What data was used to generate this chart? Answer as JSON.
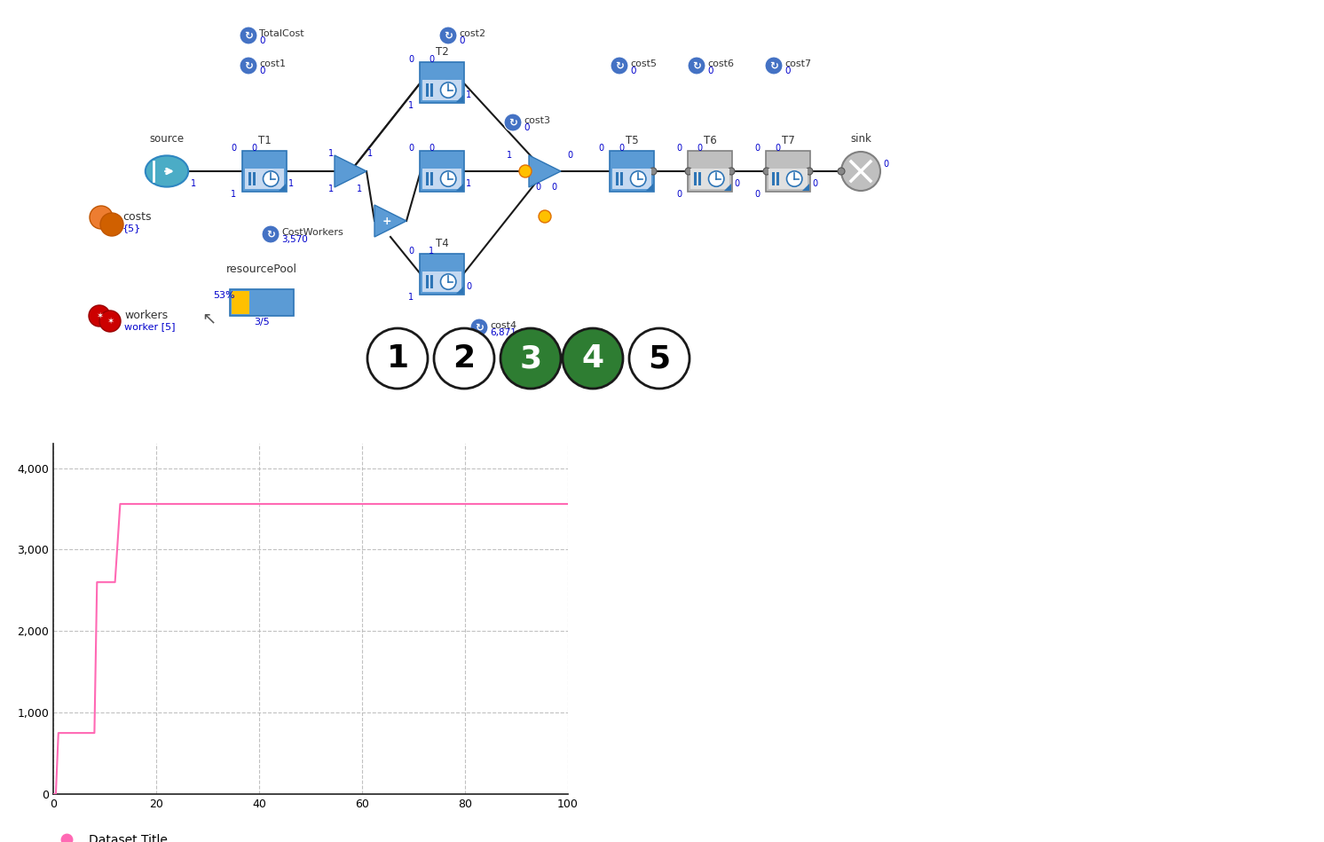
{
  "background_color": "#ffffff",
  "line_color": "#ff69b4",
  "line_data_x": [
    0,
    0.5,
    1,
    2,
    3,
    4,
    5,
    6,
    7,
    8,
    8.5,
    9,
    10,
    11,
    12,
    13,
    14,
    15,
    16,
    17,
    18,
    19,
    20,
    100
  ],
  "line_data_y": [
    0,
    0,
    750,
    750,
    750,
    750,
    750,
    750,
    750,
    750,
    2600,
    2600,
    2600,
    2600,
    2600,
    3560,
    3560,
    3560,
    3560,
    3560,
    3560,
    3560,
    3560,
    3560
  ],
  "xlim": [
    0,
    100
  ],
  "ylim": [
    0,
    4300
  ],
  "yticks": [
    0,
    1000,
    2000,
    3000,
    4000
  ],
  "xticks": [
    0,
    20,
    40,
    60,
    80,
    100
  ],
  "grid_color": "#bbbbbb",
  "legend_label": "Dataset Title",
  "legend_dot_color": "#ff69b4",
  "node_blue": "#5b9bd5",
  "node_blue_dark": "#2e75b6",
  "node_blue_light": "#c5d9f1",
  "node_gray": "#bfbfbf",
  "node_gray_dark": "#808080",
  "node_gray_light": "#e0e0e0",
  "cost_blue": "#4472c4",
  "orange": "#ffc000",
  "orange2": "#ed7d31",
  "source_teal": "#4bacc6",
  "text_black": "#000000",
  "text_blue": "#0000cc",
  "text_dark": "#333333"
}
